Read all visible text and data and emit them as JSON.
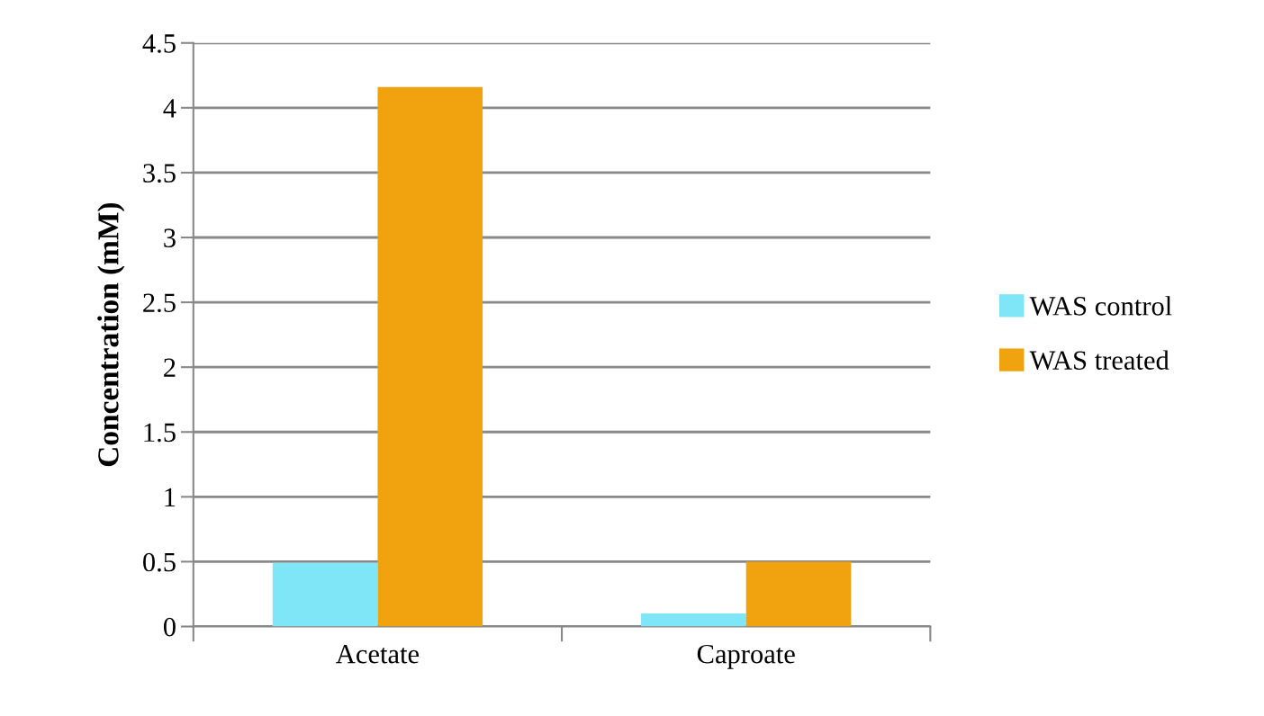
{
  "chart_data": {
    "type": "bar",
    "ylabel": "Concentration (mM)",
    "categories": [
      "Acetate",
      "Caproate"
    ],
    "series": [
      {
        "name": "WAS control",
        "color": "#7fe6f7",
        "values": [
          0.49,
          0.1
        ]
      },
      {
        "name": "WAS treated",
        "color": "#f0a30f",
        "values": [
          4.16,
          0.5
        ]
      }
    ],
    "ylim": [
      0,
      4.5
    ],
    "yticks": [
      0,
      0.5,
      1,
      1.5,
      2,
      2.5,
      3,
      3.5,
      4,
      4.5
    ],
    "grid": "y",
    "legend": "right"
  }
}
